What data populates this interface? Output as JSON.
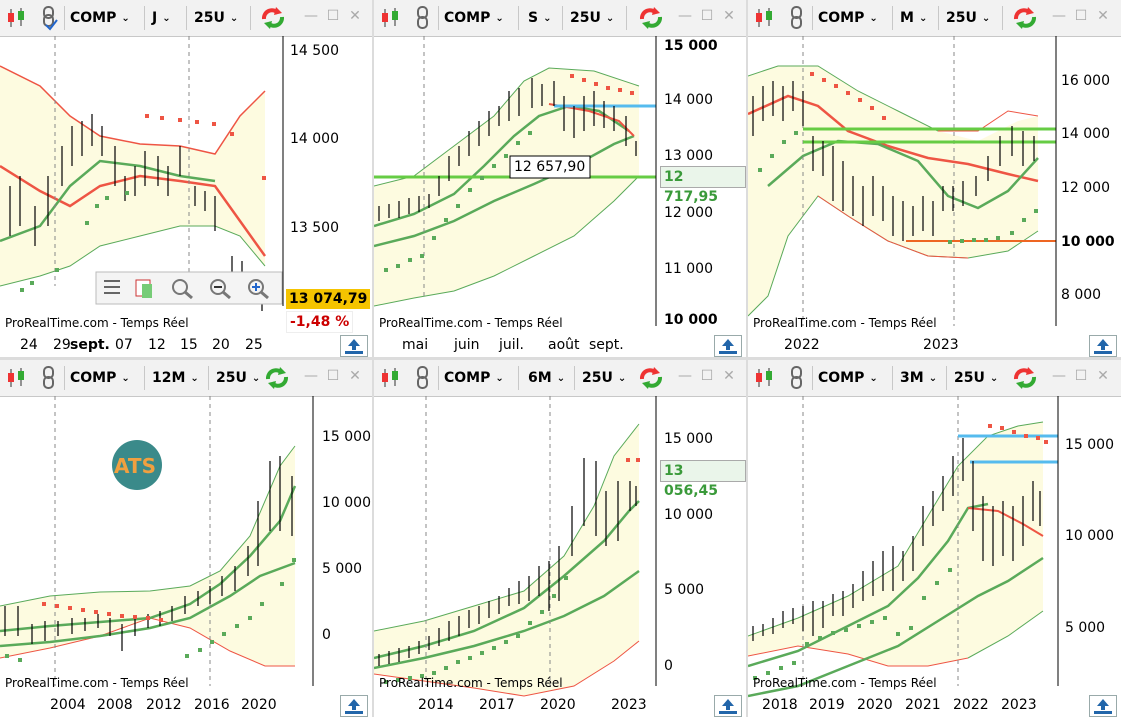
{
  "symbol": "COMP",
  "unit_label": "25U",
  "watermark": "ProRealTime.com - Temps Réel",
  "colors": {
    "green": "#5aaa5a",
    "red": "#ee5544",
    "blue": "#55bbee",
    "band": "#fdfbe0"
  },
  "panels": [
    {
      "id": "p1",
      "period": "J",
      "y_ticks": [
        "14 500",
        "14 000",
        "13 500"
      ],
      "x_ticks": [
        "24",
        "29",
        "sept.",
        "07",
        "12",
        "15",
        "20",
        "25"
      ],
      "last_price": "13 074,79",
      "change": "-1,48 %",
      "zoom_toolbar": [
        "menu-icon",
        "hand-icon",
        "zoom-fit-icon",
        "zoom-out-icon",
        "zoom-in-icon"
      ]
    },
    {
      "id": "p2",
      "period": "S",
      "y_ticks": [
        "15 000",
        "14 000",
        "13 000",
        "12 000",
        "11 000",
        "10 000"
      ],
      "x_ticks": [
        "mai",
        "juin",
        "juil.",
        "août",
        "sept."
      ],
      "price_label": "12 657,90",
      "last_price": "12 717,95"
    },
    {
      "id": "p3",
      "period": "M",
      "y_ticks": [
        "16 000",
        "14 000",
        "12 000",
        "10 000",
        "8 000"
      ],
      "x_ticks": [
        "2022",
        "2023"
      ]
    },
    {
      "id": "p4",
      "period": "12M",
      "y_ticks": [
        "15 000",
        "10 000",
        "5 000",
        "0"
      ],
      "x_ticks": [
        "2004",
        "2008",
        "2012",
        "2016",
        "2020"
      ],
      "logo_text": "ATS"
    },
    {
      "id": "p5",
      "period": "6M",
      "y_ticks": [
        "15 000",
        "10 000",
        "5 000",
        "0"
      ],
      "x_ticks": [
        "2014",
        "2017",
        "2020",
        "2023"
      ],
      "last_price": "13 056,45"
    },
    {
      "id": "p6",
      "period": "3M",
      "y_ticks": [
        "15 000",
        "10 000",
        "5 000"
      ],
      "x_ticks": [
        "2018",
        "2019",
        "2020",
        "2021",
        "2022",
        "2023"
      ]
    }
  ]
}
